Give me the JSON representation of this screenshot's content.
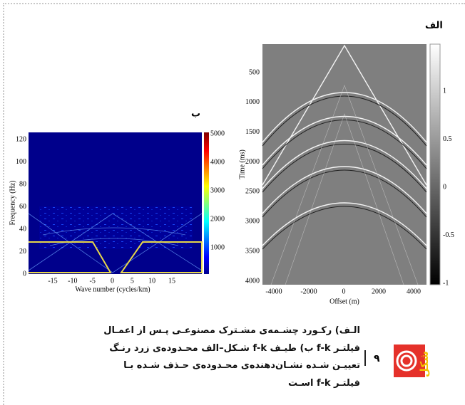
{
  "panel_a": {
    "label": "الف",
    "y_label": "Time (ms)",
    "x_label": "Offset (m)",
    "yticks": [
      "500",
      "1000",
      "1500",
      "2000",
      "2500",
      "3000",
      "3500",
      "4000"
    ],
    "xticks": [
      "-4000",
      "-2000",
      "0",
      "2000",
      "4000"
    ],
    "colorbar_ticks": [
      "1",
      "0.5",
      "0",
      "-0.5",
      "-1"
    ]
  },
  "panel_b": {
    "label": "ب",
    "y_label": "Frequency (Hz)",
    "x_label": "Wave number (cycles/km)",
    "yticks": [
      "120",
      "100",
      "80",
      "60",
      "40",
      "20",
      "0"
    ],
    "xticks": [
      "-15",
      "-10",
      "-5",
      "0",
      "5",
      "10",
      "15"
    ],
    "colorbar_ticks": [
      "5000",
      "4000",
      "3000",
      "2000",
      "1000"
    ]
  },
  "caption": {
    "figure_word": "شکل",
    "number": "۹",
    "lines": [
      "الـف) رکـورد چشـمه‌ی مشـترک مصنوعـی پـس از اعمـال",
      "فیلتـر f-k ب) طیـف f-k شـکل–الف محـدوده‌ی زرد رنـگ",
      "تعییـن شـده نشـان‌دهنده‌ی محـدوده‌ی حـذف شـده بـا",
      "فیلتـر f-k اسـت"
    ]
  }
}
